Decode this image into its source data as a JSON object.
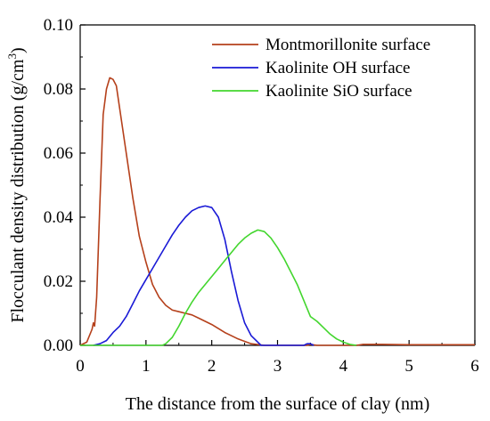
{
  "chart_data": {
    "type": "line",
    "xlabel": "The distance from the surface of clay (nm)",
    "ylabel": "Flocculant density distribution (g/cm",
    "ylabel_sup": "3",
    "ylabel_close": ")",
    "xlim": [
      0,
      6
    ],
    "ylim": [
      0,
      0.1
    ],
    "x_ticks": [
      "0",
      "1",
      "2",
      "3",
      "4",
      "5",
      "6"
    ],
    "y_ticks": [
      "0.00",
      "0.02",
      "0.04",
      "0.06",
      "0.08",
      "0.10"
    ],
    "x_tick_values": [
      0,
      1,
      2,
      3,
      4,
      5,
      6
    ],
    "y_tick_values": [
      0,
      0.02,
      0.04,
      0.06,
      0.08,
      0.1
    ],
    "grid": false,
    "legend_position": "top-right",
    "series": [
      {
        "name": "Montmorillonite surface",
        "color": "#b5401b",
        "points": [
          [
            0,
            0
          ],
          [
            0.1,
            0.001
          ],
          [
            0.18,
            0.005
          ],
          [
            0.2,
            0.007
          ],
          [
            0.22,
            0.006
          ],
          [
            0.25,
            0.015
          ],
          [
            0.3,
            0.045
          ],
          [
            0.35,
            0.072
          ],
          [
            0.4,
            0.08
          ],
          [
            0.45,
            0.0835
          ],
          [
            0.5,
            0.083
          ],
          [
            0.55,
            0.081
          ],
          [
            0.6,
            0.074
          ],
          [
            0.7,
            0.06
          ],
          [
            0.8,
            0.046
          ],
          [
            0.9,
            0.034
          ],
          [
            1.0,
            0.026
          ],
          [
            1.1,
            0.019
          ],
          [
            1.2,
            0.015
          ],
          [
            1.3,
            0.0125
          ],
          [
            1.4,
            0.011
          ],
          [
            1.5,
            0.0105
          ],
          [
            1.6,
            0.01
          ],
          [
            1.7,
            0.0095
          ],
          [
            1.8,
            0.0085
          ],
          [
            1.9,
            0.0075
          ],
          [
            2.0,
            0.0065
          ],
          [
            2.2,
            0.004
          ],
          [
            2.4,
            0.002
          ],
          [
            2.6,
            0.0005
          ],
          [
            2.8,
            0.0
          ],
          [
            3.0,
            0.0
          ],
          [
            3.45,
            0.0
          ],
          [
            3.5,
            0.0003
          ],
          [
            3.6,
            0.0
          ],
          [
            4.2,
            0.0
          ],
          [
            4.3,
            0.0003
          ],
          [
            4.6,
            0.0003
          ],
          [
            5.0,
            0.0002
          ],
          [
            6.0,
            0.0002
          ]
        ]
      },
      {
        "name": "Kaolinite OH surface",
        "color": "#1a1ad6",
        "points": [
          [
            0.2,
            0
          ],
          [
            0.3,
            0.0005
          ],
          [
            0.4,
            0.0015
          ],
          [
            0.5,
            0.004
          ],
          [
            0.6,
            0.006
          ],
          [
            0.7,
            0.009
          ],
          [
            0.8,
            0.013
          ],
          [
            0.9,
            0.017
          ],
          [
            1.0,
            0.0205
          ],
          [
            1.1,
            0.024
          ],
          [
            1.2,
            0.0275
          ],
          [
            1.3,
            0.031
          ],
          [
            1.4,
            0.0345
          ],
          [
            1.5,
            0.0375
          ],
          [
            1.6,
            0.04
          ],
          [
            1.7,
            0.042
          ],
          [
            1.8,
            0.043
          ],
          [
            1.9,
            0.0435
          ],
          [
            2.0,
            0.043
          ],
          [
            2.1,
            0.04
          ],
          [
            2.2,
            0.033
          ],
          [
            2.3,
            0.023
          ],
          [
            2.4,
            0.014
          ],
          [
            2.5,
            0.007
          ],
          [
            2.6,
            0.003
          ],
          [
            2.7,
            0.001
          ],
          [
            2.75,
            0
          ],
          [
            3.4,
            0
          ],
          [
            3.45,
            0.0005
          ],
          [
            3.5,
            0.0005
          ],
          [
            3.55,
            0
          ]
        ]
      },
      {
        "name": "Kaolinite SiO surface",
        "color": "#43d62e",
        "points": [
          [
            0,
            0
          ],
          [
            1.25,
            0
          ],
          [
            1.3,
            0.0005
          ],
          [
            1.4,
            0.0025
          ],
          [
            1.5,
            0.006
          ],
          [
            1.6,
            0.01
          ],
          [
            1.7,
            0.0135
          ],
          [
            1.8,
            0.0165
          ],
          [
            1.9,
            0.019
          ],
          [
            2.0,
            0.0215
          ],
          [
            2.1,
            0.024
          ],
          [
            2.2,
            0.0265
          ],
          [
            2.3,
            0.029
          ],
          [
            2.4,
            0.0315
          ],
          [
            2.5,
            0.0335
          ],
          [
            2.6,
            0.035
          ],
          [
            2.7,
            0.036
          ],
          [
            2.8,
            0.0355
          ],
          [
            2.9,
            0.0335
          ],
          [
            3.0,
            0.0305
          ],
          [
            3.1,
            0.027
          ],
          [
            3.2,
            0.023
          ],
          [
            3.3,
            0.019
          ],
          [
            3.4,
            0.014
          ],
          [
            3.5,
            0.009
          ],
          [
            3.6,
            0.0075
          ],
          [
            3.7,
            0.0055
          ],
          [
            3.8,
            0.0035
          ],
          [
            3.9,
            0.002
          ],
          [
            4.0,
            0.001
          ],
          [
            4.1,
            0.0003
          ],
          [
            4.2,
            0
          ]
        ]
      }
    ]
  }
}
